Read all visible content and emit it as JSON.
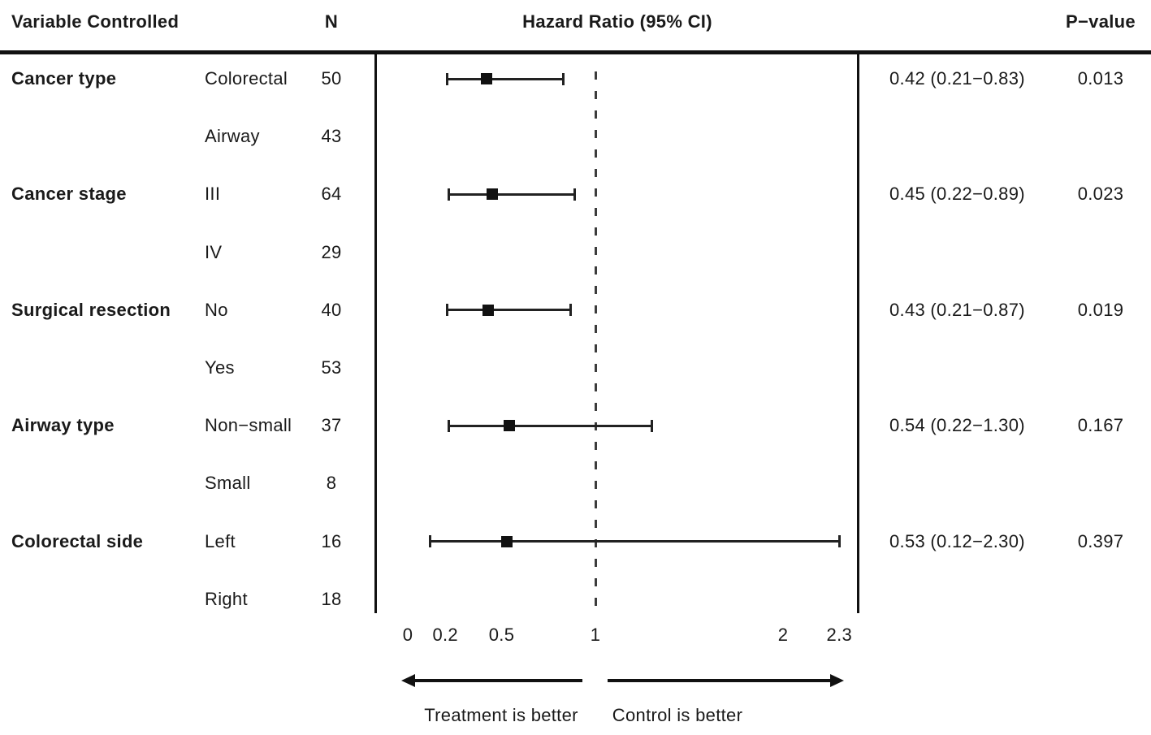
{
  "header": {
    "variable": "Variable Controlled",
    "n": "N",
    "hazard_ratio": "Hazard Ratio (95% CI)",
    "p_value": "P−value"
  },
  "chart_data": {
    "type": "forest_plot",
    "title": "Hazard Ratio (95% CI)",
    "x_axis": {
      "scale": "linear",
      "range": [
        0,
        2.3
      ],
      "tick_values": [
        0,
        0.2,
        0.5,
        1,
        2,
        2.3
      ],
      "tick_labels": [
        "0",
        "0.2",
        "0.5",
        "1",
        "2",
        "2.3"
      ],
      "reference_line": 1,
      "grid": false
    },
    "direction_labels": {
      "left": "Treatment is better",
      "right": "Control is better"
    },
    "rows": [
      {
        "variable": "Cancer type",
        "category": "Colorectal",
        "n": "50",
        "hr": 0.42,
        "ci_low": 0.21,
        "ci_high": 0.83,
        "hr_ci_text": "0.42 (0.21−0.83)",
        "p_value": "0.013"
      },
      {
        "variable": "",
        "category": "Airway",
        "n": "43"
      },
      {
        "variable": "Cancer stage",
        "category": "III",
        "n": "64",
        "hr": 0.45,
        "ci_low": 0.22,
        "ci_high": 0.89,
        "hr_ci_text": "0.45 (0.22−0.89)",
        "p_value": "0.023"
      },
      {
        "variable": "",
        "category": "IV",
        "n": "29"
      },
      {
        "variable": "Surgical resection",
        "category": "No",
        "n": "40",
        "hr": 0.43,
        "ci_low": 0.21,
        "ci_high": 0.87,
        "hr_ci_text": "0.43 (0.21−0.87)",
        "p_value": "0.019"
      },
      {
        "variable": "",
        "category": "Yes",
        "n": "53"
      },
      {
        "variable": "Airway type",
        "category": "Non−small",
        "n": "37",
        "hr": 0.54,
        "ci_low": 0.22,
        "ci_high": 1.3,
        "hr_ci_text": "0.54 (0.22−1.30)",
        "p_value": "0.167"
      },
      {
        "variable": "",
        "category": "Small",
        "n": "8"
      },
      {
        "variable": "Colorectal side",
        "category": "Left",
        "n": "16",
        "hr": 0.53,
        "ci_low": 0.12,
        "ci_high": 2.3,
        "hr_ci_text": "0.53 (0.12−2.30)",
        "p_value": "0.397"
      },
      {
        "variable": "",
        "category": "Right",
        "n": "18"
      }
    ]
  },
  "colors": {
    "background": "#ffffff",
    "text": "#1a1a1a",
    "lines": "#111111",
    "reference_line": "#3c3c3c"
  }
}
